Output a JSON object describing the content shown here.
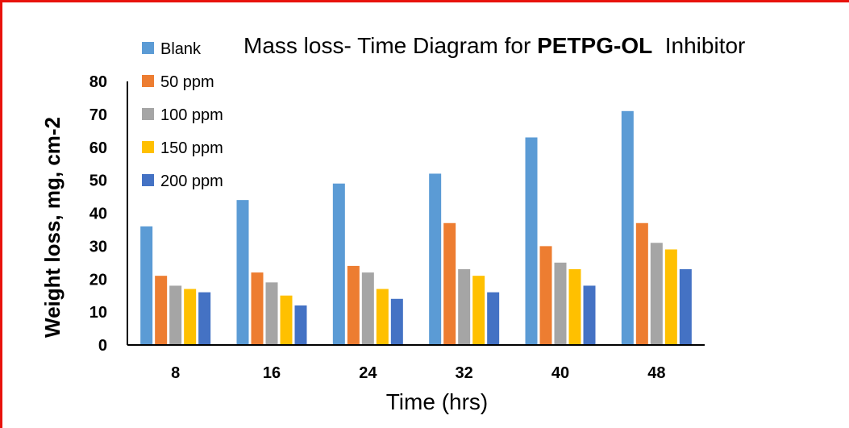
{
  "chart_data": {
    "type": "bar",
    "title_parts": [
      "Mass loss- Time Diagram for ",
      "PETPG-OL",
      "  Inhibitor"
    ],
    "xlabel": "Time (hrs)",
    "ylabel": "Weight loss, mg, cm-2",
    "categories": [
      "8",
      "16",
      "24",
      "32",
      "40",
      "48"
    ],
    "ylim": [
      0,
      80
    ],
    "yticks": [
      "0",
      "10",
      "20",
      "30",
      "40",
      "50",
      "60",
      "70",
      "80"
    ],
    "legend_position": "top-left",
    "grid": false,
    "series": [
      {
        "name": "Blank",
        "color": "#5b9bd5",
        "values": [
          36,
          44,
          49,
          52,
          63,
          71
        ]
      },
      {
        "name": "50 ppm",
        "color": "#ed7d31",
        "values": [
          21,
          22,
          24,
          37,
          30,
          37
        ]
      },
      {
        "name": "100 ppm",
        "color": "#a5a5a5",
        "values": [
          18,
          19,
          22,
          23,
          25,
          31
        ]
      },
      {
        "name": "150 ppm",
        "color": "#ffc000",
        "values": [
          17,
          15,
          17,
          21,
          23,
          29
        ]
      },
      {
        "name": "200 ppm",
        "color": "#4472c4",
        "values": [
          16,
          12,
          14,
          16,
          18,
          23
        ]
      }
    ]
  }
}
